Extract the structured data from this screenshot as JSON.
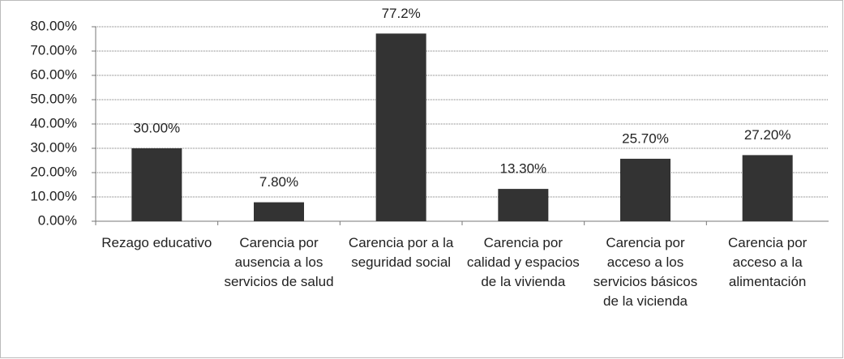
{
  "chart_data": {
    "type": "bar",
    "categories": [
      "Rezago educativo",
      "Carencia por ausencia a los servicios de salud",
      "Carencia por a la seguridad social",
      "Carencia por calidad y espacios de la vivienda",
      "Carencia por acceso a los servicios básicos de la vicienda",
      "Carencia por acceso a la alimentación"
    ],
    "values": [
      30,
      7.8,
      77.2,
      13.3,
      25.7,
      27.2
    ],
    "value_labels": [
      "30.00%",
      "7.80%",
      "77.2%",
      "13.30%",
      "25.70%",
      "27.20%"
    ],
    "color": "#333333",
    "ylim": [
      0,
      80
    ],
    "yticks": [
      {
        "value": 0,
        "label": "0.00%"
      },
      {
        "value": 10,
        "label": "10.00%"
      },
      {
        "value": 20,
        "label": "20.00%"
      },
      {
        "value": 30,
        "label": "30.00%"
      },
      {
        "value": 40,
        "label": "40.00%"
      },
      {
        "value": 50,
        "label": "50.00%"
      },
      {
        "value": 60,
        "label": "60.00%"
      },
      {
        "value": 70,
        "label": "70.00%"
      },
      {
        "value": 80,
        "label": "80.00%"
      }
    ],
    "grid": true
  }
}
